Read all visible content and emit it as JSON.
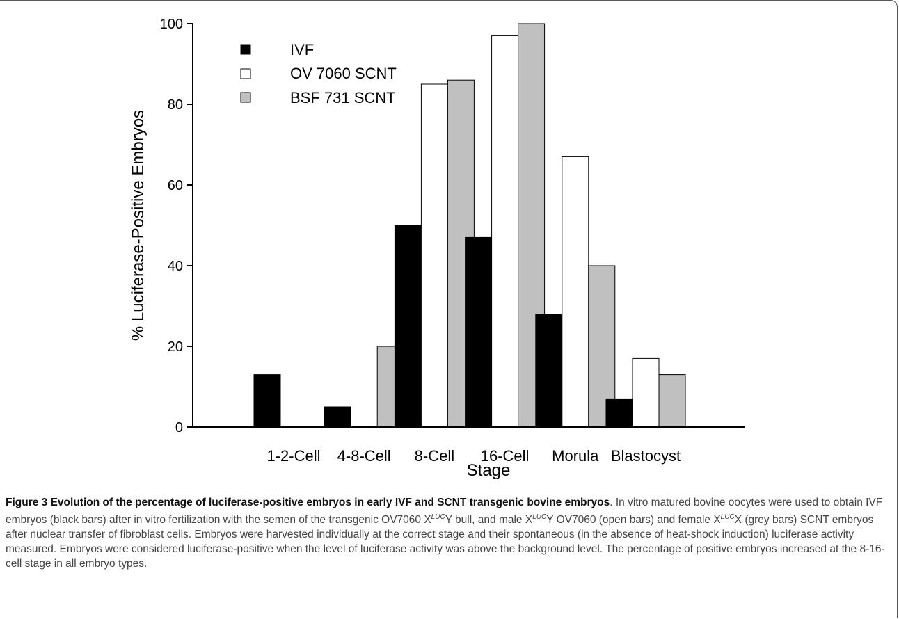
{
  "chart_data": {
    "type": "bar",
    "categories": [
      "1-2-Cell",
      "4-8-Cell",
      "8-Cell",
      "16-Cell",
      "Morula",
      "Blastocyst"
    ],
    "series": [
      {
        "name": "IVF",
        "color": "#000000",
        "values": [
          13,
          5,
          50,
          47,
          28,
          7
        ]
      },
      {
        "name": "OV 7060 SCNT",
        "color": "#ffffff",
        "values": [
          0,
          0,
          85,
          97,
          67,
          17
        ]
      },
      {
        "name": "BSF 731 SCNT",
        "color": "#c0c0c0",
        "values": [
          0,
          20,
          86,
          100,
          40,
          13
        ]
      }
    ],
    "xlabel": "Stage",
    "ylabel": "% Luciferase-Positive Embryos",
    "ylim": [
      0,
      100
    ],
    "yticks": [
      0,
      20,
      40,
      60,
      80,
      100
    ],
    "grid": false,
    "legend_position": "top-left"
  },
  "caption": {
    "figure_label": "Figure 3 Evolution of the percentage of luciferase-positive embryos in early IVF and SCNT transgenic bovine embryos",
    "t1": ". In vitro matured bovine oocytes were used to obtain IVF embryos (black bars) after in vitro fertilization with the semen of the transgenic OV7060 X",
    "sup1": "LUC",
    "t2": "Y bull, and male X",
    "sup2": "LUC",
    "t3": "Y OV7060 (open bars) and female X",
    "sup3": "LUC",
    "t4": "X (grey bars) SCNT embryos after nuclear transfer of fibroblast cells. Embryos were harvested individually at the correct stage and their spontaneous (in the absence of heat-shock induction) luciferase activity measured. Embryos were considered luciferase-positive when the level of luciferase activity was above the background level. The percentage of positive embryos increased at the 8-16-cell stage in all embryo types."
  }
}
